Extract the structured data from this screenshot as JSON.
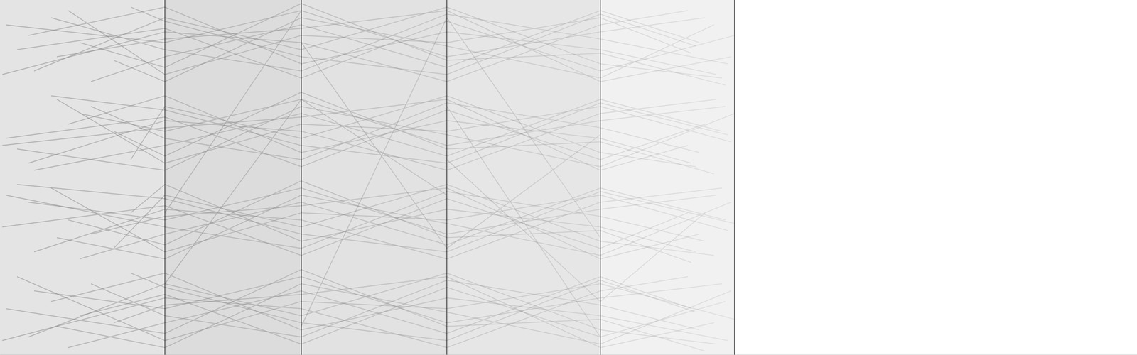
{
  "chart_data": {
    "type": "parallel",
    "color": "#8a8a8a",
    "grid": true,
    "tick_labels": false,
    "xlim": [
      0,
      100
    ],
    "ylim": [
      0,
      100
    ],
    "xticks": [
      14.5,
      26.5,
      39.3,
      52.8,
      64.6
    ],
    "series": [
      {
        "x": [
          0.5,
          14.5,
          26.5,
          39.3,
          52.8,
          62
        ],
        "values": [
          93,
          88,
          97,
          84,
          91,
          95
        ]
      },
      {
        "x": [
          3,
          14.5,
          26.5,
          39.3,
          52.8,
          63.5
        ],
        "values": [
          80,
          95,
          86,
          98,
          82,
          78
        ]
      },
      {
        "x": [
          6,
          14.5,
          26.5,
          39.3,
          52.8,
          60.8
        ],
        "values": [
          97,
          79,
          90,
          88,
          95,
          85
        ]
      },
      {
        "x": [
          1.5,
          14.5,
          26.5,
          39.3,
          52.8,
          64.6
        ],
        "values": [
          86,
          92,
          78,
          94,
          80,
          90
        ]
      },
      {
        "x": [
          8,
          14.5,
          26.5,
          39.3,
          52.8,
          61.5
        ],
        "values": [
          77,
          84,
          93,
          81,
          97,
          88
        ]
      },
      {
        "x": [
          2.5,
          14.5,
          26.5,
          39.3,
          52.8,
          63
        ],
        "values": [
          90,
          98,
          82,
          91,
          86,
          79
        ]
      },
      {
        "x": [
          10,
          14.5,
          26.5,
          39.3,
          52.8,
          62.8
        ],
        "values": [
          83,
          77,
          95,
          87,
          78,
          93
        ]
      },
      {
        "x": [
          4.5,
          14.5,
          26.5,
          39.3,
          52.8,
          64
        ],
        "values": [
          95,
          86,
          80,
          96,
          89,
          82
        ]
      },
      {
        "x": [
          0.2,
          14.5,
          26.5,
          39.3,
          52.8,
          60.5
        ],
        "values": [
          79,
          91,
          88,
          77,
          93,
          97
        ]
      },
      {
        "x": [
          7,
          14.5,
          26.5,
          39.3,
          52.8,
          63.8
        ],
        "values": [
          88,
          81,
          99,
          83,
          85,
          76
        ]
      },
      {
        "x": [
          11.5,
          14.5,
          26.5,
          39.3,
          52.8,
          61.2
        ],
        "values": [
          98,
          94,
          84,
          79,
          96,
          87
        ]
      },
      {
        "x": [
          5,
          14.5,
          26.5,
          39.3,
          52.8,
          64.3
        ],
        "values": [
          84,
          89,
          92,
          97,
          77,
          84
        ]
      },
      {
        "x": [
          0.5,
          14.5,
          26.5,
          39.3,
          52.8,
          62
        ],
        "values": [
          61,
          67,
          53,
          69,
          55,
          65
        ]
      },
      {
        "x": [
          3,
          14.5,
          26.5,
          39.3,
          52.8,
          63.5
        ],
        "values": [
          52,
          59,
          68,
          56,
          72,
          63
        ]
      },
      {
        "x": [
          6,
          14.5,
          26.5,
          39.3,
          52.8,
          60.8
        ],
        "values": [
          65,
          73,
          57,
          66,
          61,
          54
        ]
      },
      {
        "x": [
          1.5,
          14.5,
          26.5,
          39.3,
          52.8,
          64.6
        ],
        "values": [
          58,
          52,
          70,
          62,
          53,
          68
        ]
      },
      {
        "x": [
          8,
          14.5,
          26.5,
          39.3,
          52.8,
          61.5
        ],
        "values": [
          70,
          61,
          55,
          71,
          64,
          57
        ]
      },
      {
        "x": [
          2.5,
          14.5,
          26.5,
          39.3,
          52.8,
          63
        ],
        "values": [
          54,
          66,
          63,
          52,
          68,
          72
        ]
      },
      {
        "x": [
          10,
          14.5,
          26.5,
          39.3,
          52.8,
          62.8
        ],
        "values": [
          63,
          56,
          74,
          58,
          60,
          51
        ]
      },
      {
        "x": [
          4.5,
          14.5,
          26.5,
          39.3,
          52.8,
          64
        ],
        "values": [
          73,
          69,
          59,
          54,
          71,
          62
        ]
      },
      {
        "x": [
          0.2,
          14.5,
          26.5,
          39.3,
          52.8,
          60.5
        ],
        "values": [
          59,
          64,
          67,
          72,
          52,
          59
        ]
      },
      {
        "x": [
          7,
          14.5,
          26.5,
          39.3,
          52.8,
          63.8
        ],
        "values": [
          68,
          63,
          72,
          59,
          66,
          70
        ]
      },
      {
        "x": [
          11.5,
          14.5,
          26.5,
          39.3,
          52.8,
          61.2
        ],
        "values": [
          55,
          70,
          61,
          73,
          57,
          53
        ]
      },
      {
        "x": [
          5,
          14.5,
          26.5,
          39.3,
          52.8,
          64.3
        ],
        "values": [
          72,
          54,
          65,
          63,
          70,
          60
        ]
      },
      {
        "x": [
          0.5,
          14.5,
          26.5,
          39.3,
          52.8,
          62
        ],
        "values": [
          45,
          36,
          30,
          46,
          39,
          32
        ]
      },
      {
        "x": [
          3,
          14.5,
          26.5,
          39.3,
          52.8,
          63.5
        ],
        "values": [
          29,
          41,
          38,
          27,
          43,
          47
        ]
      },
      {
        "x": [
          6,
          14.5,
          26.5,
          39.3,
          52.8,
          60.8
        ],
        "values": [
          38,
          31,
          49,
          33,
          35,
          26
        ]
      },
      {
        "x": [
          1.5,
          14.5,
          26.5,
          39.3,
          52.8,
          64.6
        ],
        "values": [
          48,
          44,
          34,
          29,
          46,
          37
        ]
      },
      {
        "x": [
          8,
          14.5,
          26.5,
          39.3,
          52.8,
          61.5
        ],
        "values": [
          34,
          39,
          42,
          47,
          27,
          34
        ]
      },
      {
        "x": [
          2.5,
          14.5,
          26.5,
          39.3,
          52.8,
          63
        ],
        "values": [
          43,
          38,
          47,
          34,
          41,
          45
        ]
      },
      {
        "x": [
          10,
          14.5,
          26.5,
          39.3,
          52.8,
          62.8
        ],
        "values": [
          30,
          45,
          36,
          48,
          32,
          28
        ]
      },
      {
        "x": [
          4.5,
          14.5,
          26.5,
          39.3,
          52.8,
          64
        ],
        "values": [
          47,
          29,
          40,
          38,
          45,
          35
        ]
      },
      {
        "x": [
          0.2,
          14.5,
          26.5,
          39.3,
          52.8,
          60.5
        ],
        "values": [
          36,
          42,
          28,
          44,
          30,
          40
        ]
      },
      {
        "x": [
          7,
          14.5,
          26.5,
          39.3,
          52.8,
          63.8
        ],
        "values": [
          27,
          34,
          43,
          31,
          47,
          38
        ]
      },
      {
        "x": [
          11.5,
          14.5,
          26.5,
          39.3,
          52.8,
          61.2
        ],
        "values": [
          40,
          48,
          32,
          41,
          36,
          29
        ]
      },
      {
        "x": [
          5,
          14.5,
          26.5,
          39.3,
          52.8,
          64.3
        ],
        "values": [
          33,
          27,
          45,
          37,
          28,
          43
        ]
      },
      {
        "x": [
          0.5,
          14.5,
          26.5,
          39.3,
          52.8,
          62
        ],
        "values": [
          13,
          6,
          24,
          8,
          10,
          1
        ]
      },
      {
        "x": [
          3,
          14.5,
          26.5,
          39.3,
          52.8,
          63.5
        ],
        "values": [
          18,
          13,
          22,
          9,
          16,
          20
        ]
      },
      {
        "x": [
          6,
          14.5,
          26.5,
          39.3,
          52.8,
          60.8
        ],
        "values": [
          2,
          9,
          18,
          6,
          22,
          13
        ]
      },
      {
        "x": [
          1.5,
          14.5,
          26.5,
          39.3,
          52.8,
          64.6
        ],
        "values": [
          22,
          4,
          15,
          13,
          20,
          10
        ]
      },
      {
        "x": [
          8,
          14.5,
          26.5,
          39.3,
          52.8,
          61.5
        ],
        "values": [
          20,
          11,
          5,
          21,
          14,
          7
        ]
      },
      {
        "x": [
          2.5,
          14.5,
          26.5,
          39.3,
          52.8,
          63
        ],
        "values": [
          5,
          20,
          11,
          23,
          7,
          3
        ]
      },
      {
        "x": [
          10,
          14.5,
          26.5,
          39.3,
          52.8,
          62.8
        ],
        "values": [
          9,
          14,
          17,
          22,
          2,
          9
        ]
      },
      {
        "x": [
          4.5,
          14.5,
          26.5,
          39.3,
          52.8,
          64
        ],
        "values": [
          15,
          23,
          7,
          16,
          11,
          4
        ]
      },
      {
        "x": [
          0.2,
          14.5,
          26.5,
          39.3,
          52.8,
          60.5
        ],
        "values": [
          4,
          16,
          13,
          2,
          18,
          22
        ]
      },
      {
        "x": [
          7,
          14.5,
          26.5,
          39.3,
          52.8,
          63.8
        ],
        "values": [
          11,
          17,
          3,
          19,
          5,
          15
        ]
      },
      {
        "x": [
          11.5,
          14.5,
          26.5,
          39.3,
          52.8,
          61.2
        ],
        "values": [
          23,
          19,
          9,
          4,
          21,
          12
        ]
      },
      {
        "x": [
          5,
          14.5,
          26.5,
          39.3,
          52.8,
          64.3
        ],
        "values": [
          8,
          2,
          20,
          12,
          3,
          18
        ]
      },
      {
        "x": [
          26.5,
          39.3,
          52.8
        ],
        "values": [
          88,
          30,
          62
        ]
      },
      {
        "x": [
          14.5,
          26.5,
          39.3
        ],
        "values": [
          20,
          72,
          45
        ]
      },
      {
        "x": [
          39.3,
          52.8,
          62
        ],
        "values": [
          55,
          15,
          40
        ]
      },
      {
        "x": [
          26.5,
          39.3,
          52.8
        ],
        "values": [
          8,
          95,
          33
        ]
      },
      {
        "x": [
          39.3,
          52.8
        ],
        "values": [
          70,
          5
        ]
      },
      {
        "x": [
          14.5,
          26.5
        ],
        "values": [
          40,
          97
        ]
      }
    ]
  }
}
